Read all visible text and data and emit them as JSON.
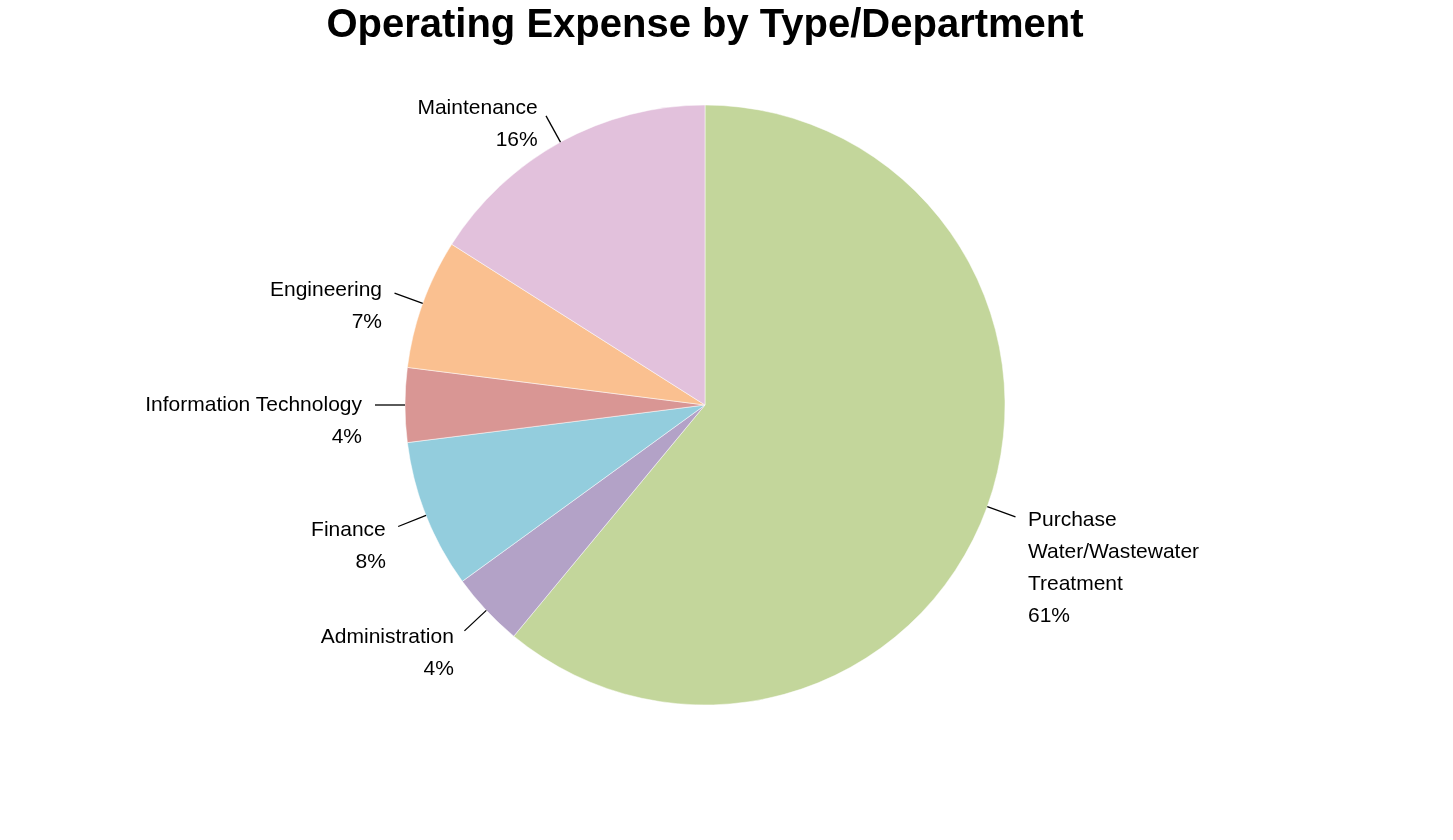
{
  "chart_data": {
    "type": "pie",
    "title": "Operating Expense by Type/Department",
    "categories": [
      "Purchase Water/Wastewater Treatment",
      "Administration",
      "Finance",
      "Information Technology",
      "Engineering",
      "Maintenance"
    ],
    "values": [
      61,
      4,
      8,
      4,
      7,
      16
    ],
    "value_labels": [
      "61%",
      "4%",
      "8%",
      "4%",
      "7%",
      "16%"
    ],
    "colors": [
      "#c3d69b",
      "#b3a2c7",
      "#93cddd",
      "#d99694",
      "#fac090",
      "#e2c1dc"
    ],
    "legend": false
  }
}
